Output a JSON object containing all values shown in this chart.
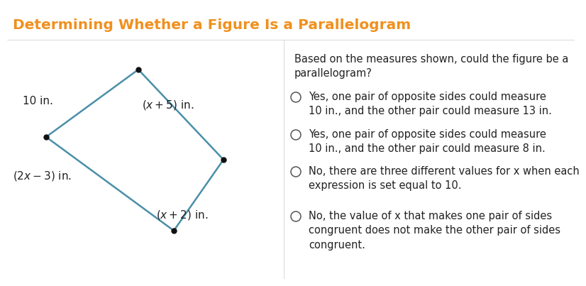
{
  "title": "Determining Whether a Figure Is a Parallelogram",
  "title_color": "#F0901E",
  "title_fontsize": 14.5,
  "title_bg": "#f2f2f2",
  "content_bg": "#ffffff",
  "quad_color": "#4a8fa8",
  "quad_linewidth": 1.8,
  "dot_color": "#111111",
  "dot_size": 5,
  "label_10in_text": "10 in.",
  "label_x5_text": "(x + 5) in.",
  "label_2x3_text": "(2x– 3) in.",
  "label_x2_text": "(x + 2) in.",
  "question_text": "Based on the measures shown, could the figure be a\nparallelogram?",
  "option1": "Yes, one pair of opposite sides could measure\n10 in., and the other pair could measure 13 in.",
  "option2": "Yes, one pair of opposite sides could measure\n10 in., and the other pair could measure 8 in.",
  "option3": "No, there are three different values for x when each\nexpression is set equal to 10.",
  "option4": "No, the value of x that makes one pair of sides\ncongruent does not make the other pair of sides\ncongruent.",
  "text_fontsize": 10.5,
  "text_color": "#222222"
}
